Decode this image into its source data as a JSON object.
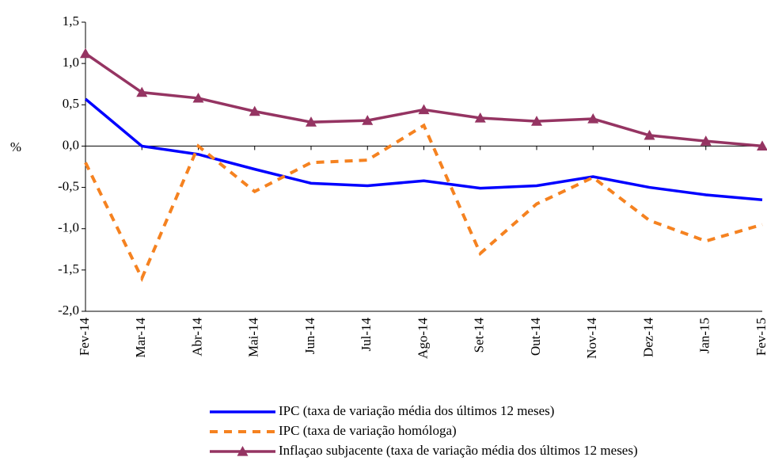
{
  "chart_data": {
    "type": "line",
    "y_label": "%",
    "categories": [
      "Fev-14",
      "Mar-14",
      "Abr-14",
      "Mai-14",
      "Jun-14",
      "Jul-14",
      "Ago-14",
      "Set-14",
      "Out-14",
      "Nov-14",
      "Dez-14",
      "Jan-15",
      "Fev-15"
    ],
    "series": [
      {
        "name": "IPC (taxa de variação média dos últimos 12 meses)",
        "color": "#0000ff",
        "style": "solid",
        "marker": "none",
        "values": [
          0.57,
          0.0,
          -0.1,
          -0.28,
          -0.45,
          -0.48,
          -0.42,
          -0.51,
          -0.48,
          -0.37,
          -0.5,
          -0.59,
          -0.65
        ]
      },
      {
        "name": "IPC (taxa de variação homóloga)",
        "color": "#f58220",
        "style": "dashed",
        "marker": "none",
        "values": [
          -0.2,
          -1.6,
          0.0,
          -0.55,
          -0.2,
          -0.17,
          0.25,
          -1.3,
          -0.7,
          -0.38,
          -0.9,
          -1.15,
          -0.95
        ]
      },
      {
        "name": "Inflaçao subjacente (taxa de variação média dos últimos 12 meses)",
        "color": "#953462",
        "style": "solid",
        "marker": "triangle",
        "values": [
          1.12,
          0.65,
          0.58,
          0.42,
          0.29,
          0.31,
          0.44,
          0.34,
          0.3,
          0.33,
          0.13,
          0.06,
          0.0
        ]
      }
    ],
    "ylim": [
      -2.0,
      1.5
    ],
    "yticks": [
      {
        "value": -2.0,
        "label": "-2,0"
      },
      {
        "value": -1.5,
        "label": "-1,5"
      },
      {
        "value": -1.0,
        "label": "-1,0"
      },
      {
        "value": -0.5,
        "label": "-0,5"
      },
      {
        "value": 0.0,
        "label": "0,0"
      },
      {
        "value": 0.5,
        "label": "0,5"
      },
      {
        "value": 1.0,
        "label": "1,0"
      },
      {
        "value": 1.5,
        "label": "1,5"
      }
    ],
    "grid": false,
    "legend": "bottom"
  }
}
